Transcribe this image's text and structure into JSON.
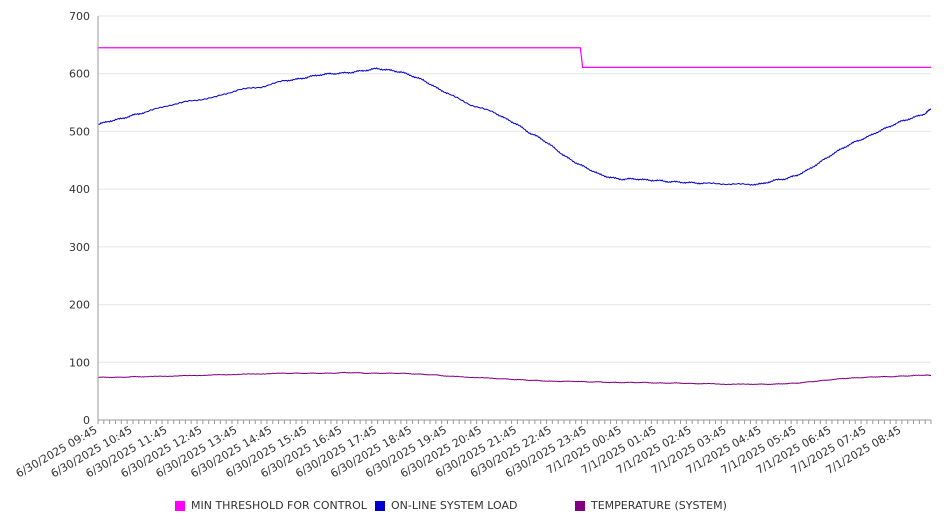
{
  "chart_data": {
    "type": "line",
    "title": "",
    "xlabel": "",
    "ylabel": "",
    "ylim": [
      0,
      700
    ],
    "yticks": [
      0,
      100,
      200,
      300,
      400,
      500,
      600,
      700
    ],
    "grid": true,
    "legend_position": "bottom",
    "x_tick_labels": [
      "6/30/2025 09:45",
      "6/30/2025 10:45",
      "6/30/2025 11:45",
      "6/30/2025 12:45",
      "6/30/2025 13:45",
      "6/30/2025 14:45",
      "6/30/2025 15:45",
      "6/30/2025 16:45",
      "6/30/2025 17:45",
      "6/30/2025 18:45",
      "6/30/2025 19:45",
      "6/30/2025 20:45",
      "6/30/2025 21:45",
      "6/30/2025 22:45",
      "6/30/2025 23:45",
      "7/1/2025 00:45",
      "7/1/2025 01:45",
      "7/1/2025 02:45",
      "7/1/2025 03:45",
      "7/1/2025 04:45",
      "7/1/2025 05:45",
      "7/1/2025 06:45",
      "7/1/2025 07:45",
      "7/1/2025 08:45"
    ],
    "x_sampled_hours": [
      0,
      0.5,
      1,
      1.5,
      2,
      3,
      4,
      5,
      6,
      7,
      8,
      8.5,
      9,
      9.5,
      10,
      10.5,
      11,
      11.5,
      12,
      12.5,
      13,
      13.5,
      14,
      14.5,
      15,
      16,
      17,
      17.5,
      18,
      18.5,
      19,
      19.5,
      20,
      20.5,
      21,
      21.5,
      22,
      22.5,
      23,
      23.5,
      24
    ],
    "series": [
      {
        "name": "MIN THRESHOLD FOR CONTROL",
        "color": "#ff00ff",
        "step_x": [
          0,
          20.7,
          20.8,
          35.75
        ],
        "step_y": [
          645,
          645,
          611,
          611
        ]
      },
      {
        "name": "ON-LINE SYSTEM LOAD",
        "color": "#0000cc",
        "values": [
          512,
          518,
          522,
          528,
          533,
          545,
          553,
          559,
          572,
          577,
          588,
          590,
          594,
          598,
          600,
          601,
          603,
          606,
          609,
          606,
          603,
          596,
          588,
          576,
          566,
          546,
          533,
          522,
          512,
          498,
          488,
          474,
          458,
          446,
          436,
          426,
          420,
          417,
          418,
          416,
          415
        ]
      },
      {
        "name": "TEMPERATURE (SYSTEM)",
        "color": "#800080",
        "values": [
          74,
          74,
          74,
          75,
          75,
          76,
          77,
          78,
          79,
          80,
          81,
          81,
          81,
          81,
          81,
          82,
          82,
          81,
          81,
          81,
          81,
          80,
          79,
          78,
          76,
          74,
          72,
          71,
          70,
          69,
          68,
          67,
          67,
          67,
          66,
          66,
          65,
          65,
          65,
          65,
          64
        ]
      }
    ],
    "continuation_values": {
      "x_hours": [
        24.5,
        25,
        25.5,
        26,
        27,
        28,
        28.5,
        29,
        29.5,
        30,
        30.5,
        31,
        31.5,
        32,
        32.5,
        33,
        33.5,
        34,
        34.5,
        35,
        35.5,
        35.75
      ],
      "load": [
        413,
        412,
        411,
        410,
        409,
        408,
        409,
        415,
        418,
        424,
        434,
        447,
        460,
        472,
        482,
        490,
        500,
        509,
        518,
        524,
        531,
        539
      ],
      "temperature": [
        64,
        64,
        63,
        63,
        62,
        62,
        62,
        62,
        63,
        64,
        66,
        68,
        70,
        72,
        73,
        74,
        75,
        75,
        76,
        77,
        78,
        77
      ]
    }
  },
  "legend": {
    "items": [
      {
        "label": "MIN THRESHOLD FOR CONTROL",
        "color": "#ff00ff"
      },
      {
        "label": "ON-LINE SYSTEM LOAD",
        "color": "#0000cc"
      },
      {
        "label": "TEMPERATURE (SYSTEM)",
        "color": "#800080"
      }
    ]
  },
  "colors": {
    "axis": "#999999",
    "grid": "#e6e6e6",
    "text": "#333333"
  }
}
